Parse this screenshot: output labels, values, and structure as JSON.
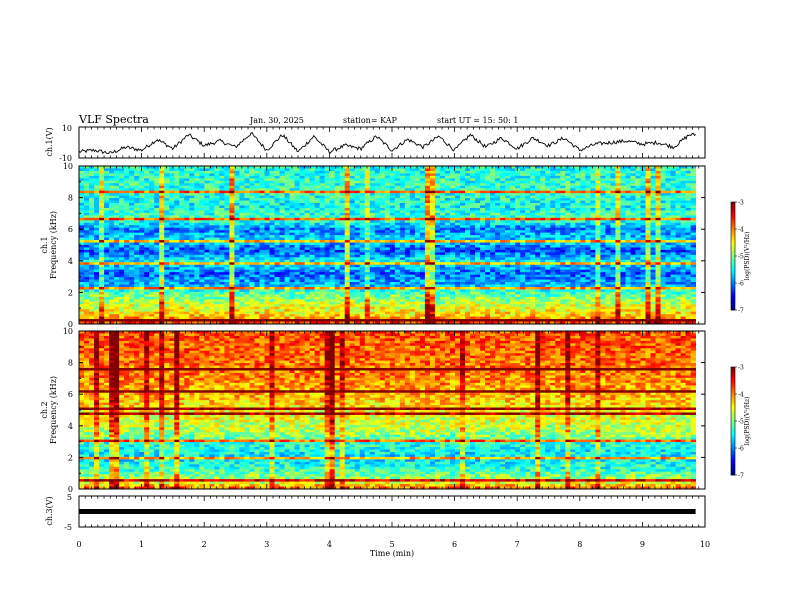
{
  "header": {
    "title": "VLF Spectra",
    "date": "Jan. 30, 2025",
    "station": "station= KAP",
    "start": "start UT = 15: 50: 1"
  },
  "chart_data": [
    {
      "type": "line",
      "panel": "ch1-waveform",
      "ylabel": "ch.1(V)",
      "ylim": [
        -10,
        10
      ],
      "ytick_labels": [
        "10",
        "-10"
      ],
      "xlim": [
        0,
        10
      ],
      "note": "oscillating waveform with roughly 0.5-min period, amplitude about 4-8 V",
      "x": [
        0,
        0.25,
        0.5,
        0.75,
        1.0,
        1.25,
        1.5,
        1.75,
        2.0,
        2.25,
        2.5,
        2.75,
        3.0,
        3.25,
        3.5,
        3.75,
        4.0,
        4.25,
        4.5,
        4.75,
        5.0,
        5.25,
        5.5,
        5.75,
        6.0,
        6.25,
        6.5,
        6.75,
        7.0,
        7.25,
        7.5,
        7.75,
        8.0,
        8.25,
        8.5,
        8.75,
        9.0,
        9.25,
        9.5,
        9.75
      ],
      "y": [
        -6,
        -5,
        -7,
        -3,
        -5,
        2,
        -4,
        5,
        -2,
        1,
        -3,
        6,
        -5,
        5,
        -6,
        4,
        -6,
        -2,
        -4,
        4,
        -5,
        2,
        -3,
        4,
        -5,
        5,
        -3,
        3,
        -4,
        3,
        -2,
        3,
        -5,
        -1,
        0,
        1,
        -1,
        0,
        -3,
        5
      ]
    },
    {
      "type": "heatmap",
      "panel": "ch1-spectrogram",
      "ylabel": "ch.1 Frequency (kHz)",
      "ylim": [
        0,
        10
      ],
      "ytick_labels": [
        "0",
        "2",
        "4",
        "6",
        "8",
        "10"
      ],
      "xlim": [
        0,
        9.85
      ],
      "colorbar": {
        "label": "log(PSD)(V²/Hz)",
        "range": [
          -7,
          -3
        ],
        "ticks": [
          "-3",
          "-4",
          "-5",
          "-6",
          "-7"
        ]
      },
      "freq_profile_khz": [
        [
          0,
          -3.6
        ],
        [
          0.5,
          -4.3
        ],
        [
          1.2,
          -4.7
        ],
        [
          2.0,
          -5.2
        ],
        [
          2.5,
          -5.8
        ],
        [
          3.2,
          -6.1
        ],
        [
          4.0,
          -5.5
        ],
        [
          4.6,
          -6.2
        ],
        [
          5.3,
          -5.6
        ],
        [
          6.0,
          -6.0
        ],
        [
          6.7,
          -5.2
        ],
        [
          7.5,
          -5.5
        ],
        [
          8.5,
          -5.3
        ],
        [
          10.0,
          -5.4
        ]
      ],
      "lines_khz": [
        0.25,
        2.3,
        3.8,
        5.2,
        6.6,
        8.4
      ]
    },
    {
      "type": "heatmap",
      "panel": "ch2-spectrogram",
      "ylabel": "ch.2 Frequency (kHz)",
      "ylim": [
        0,
        10
      ],
      "ytick_labels": [
        "0",
        "2",
        "4",
        "6",
        "8",
        "10"
      ],
      "xlim": [
        0,
        9.85
      ],
      "colorbar": {
        "label": "log(PSD)(V²/Hz)",
        "range": [
          -7,
          -3
        ],
        "ticks": [
          "-3",
          "-4",
          "-5",
          "-6",
          "-7"
        ]
      },
      "freq_profile_khz": [
        [
          0,
          -3.8
        ],
        [
          0.4,
          -4.6
        ],
        [
          1.2,
          -5.3
        ],
        [
          2.0,
          -5.6
        ],
        [
          3.0,
          -5.3
        ],
        [
          3.6,
          -4.8
        ],
        [
          4.5,
          -4.6
        ],
        [
          5.2,
          -4.4
        ],
        [
          6.0,
          -4.2
        ],
        [
          7.0,
          -4.0
        ],
        [
          8.5,
          -3.9
        ],
        [
          10.0,
          -3.8
        ]
      ],
      "lines_khz": [
        0.6,
        1.9,
        3.1,
        4.8,
        5.1,
        6.2,
        7.6
      ]
    },
    {
      "type": "line",
      "panel": "ch3-waveform",
      "ylabel": "ch.3(V)",
      "ylim": [
        -5,
        5
      ],
      "ytick_labels": [
        "5",
        "-5"
      ],
      "xlim": [
        0,
        10
      ],
      "note": "constant thick black band near 0 V",
      "band_center": 0,
      "band_halfwidth": 0.8
    }
  ],
  "x_axis": {
    "label": "Time (min)",
    "range": [
      0,
      10
    ],
    "tick_labels": [
      "0",
      "1",
      "2",
      "3",
      "4",
      "5",
      "6",
      "7",
      "8",
      "9",
      "10"
    ]
  }
}
